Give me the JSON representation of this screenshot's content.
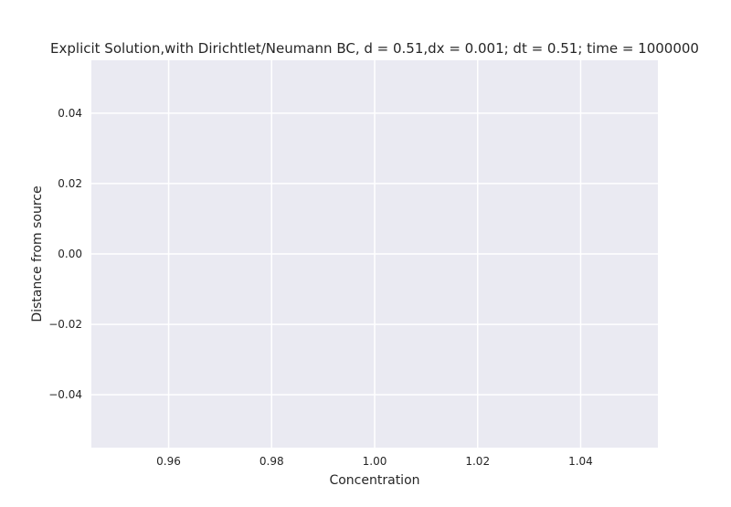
{
  "chart_data": {
    "type": "line",
    "title": "Explicit Solution,with Dirichtlet/Neumann BC, d = 0.51,dx = 0.001; dt = 0.51; time = 1000000",
    "xlabel": "Concentration",
    "ylabel": "Distance from source",
    "xlim": [
      0.945,
      1.055
    ],
    "ylim": [
      -0.055,
      0.055
    ],
    "x_ticks": [
      0.96,
      0.98,
      1.0,
      1.02,
      1.04
    ],
    "x_tick_labels": [
      "0.96",
      "0.98",
      "1.00",
      "1.02",
      "1.04"
    ],
    "y_ticks": [
      0.04,
      0.02,
      0.0,
      -0.02,
      -0.04
    ],
    "y_tick_labels": [
      "0.04",
      "0.02",
      "0.00",
      "−0.02",
      "−0.04"
    ],
    "grid": true,
    "legend": "none",
    "series": [],
    "colors": {
      "plot_background": "#eaeaf2",
      "grid": "#ffffff",
      "text": "#262626"
    }
  }
}
